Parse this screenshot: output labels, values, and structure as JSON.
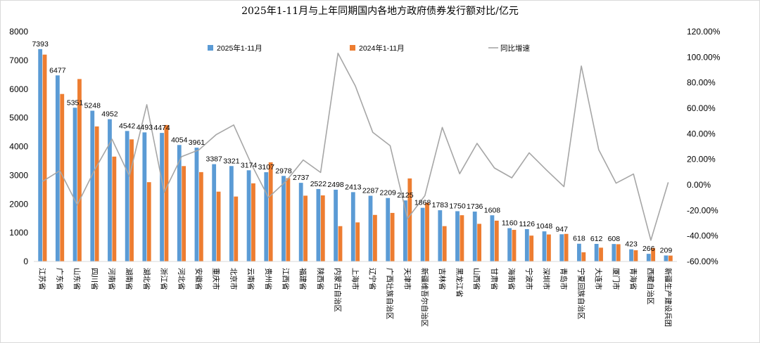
{
  "chart_data": {
    "type": "bar",
    "title": "2025年1-11月与上年同期国内各地方政府债券发行额对比/亿元",
    "legend_position": "top",
    "grid": false,
    "categories": [
      "江苏省",
      "广东省",
      "山东省",
      "四川省",
      "河南省",
      "湖南省",
      "湖北省",
      "浙江省",
      "河北省",
      "安徽省",
      "重庆市",
      "北京市",
      "云南省",
      "贵州省",
      "江西省",
      "福建省",
      "陕西省",
      "内蒙古自治区",
      "上海市",
      "辽宁省",
      "广西壮族自治区",
      "天津市",
      "新疆维吾尔自治区",
      "吉林省",
      "黑龙江省",
      "山西省",
      "甘肃省",
      "海南省",
      "宁波市",
      "深圳市",
      "青岛市",
      "宁夏回族自治区",
      "大连市",
      "厦门市",
      "青海省",
      "西藏自治区",
      "新疆生产建设兵团"
    ],
    "y_left": {
      "min": 0,
      "max": 8000,
      "step": 1000
    },
    "y_right": {
      "min": -60,
      "max": 120,
      "step": 20,
      "unit": "%"
    },
    "series": [
      {
        "name": "2025年1-11月",
        "color": "#5b9bd5",
        "axis": "left",
        "values": [
          7393,
          6477,
          5351,
          5248,
          4952,
          4542,
          4493,
          4474,
          4054,
          3961,
          3387,
          3321,
          3174,
          3107,
          2978,
          2737,
          2522,
          2498,
          2413,
          2287,
          2209,
          2125,
          1868,
          1783,
          1750,
          1736,
          1608,
          1160,
          1126,
          1048,
          947,
          618,
          612,
          608,
          423,
          266,
          209
        ]
      },
      {
        "name": "2024年1-11月",
        "color": "#ed7d31",
        "axis": "left",
        "values": [
          7200,
          5830,
          6350,
          4700,
          3650,
          4250,
          2760,
          4750,
          3320,
          3110,
          2430,
          2260,
          2720,
          3450,
          2900,
          2290,
          2300,
          1230,
          1360,
          1620,
          1690,
          2890,
          2040,
          1230,
          1610,
          1310,
          1420,
          1100,
          900,
          940,
          960,
          320,
          480,
          600,
          390,
          470,
          205
        ]
      },
      {
        "name": "同比增速",
        "color": "#a6a6a6",
        "axis": "right",
        "values": [
          2.7,
          11.1,
          -15.7,
          11.7,
          35.7,
          6.9,
          62.8,
          -5.8,
          22.1,
          27.4,
          39.4,
          46.9,
          16.7,
          -9.9,
          2.7,
          19.5,
          9.7,
          103.1,
          77.4,
          41.2,
          30.7,
          -26.5,
          -8.4,
          45.0,
          8.7,
          32.5,
          13.2,
          5.5,
          25.1,
          11.5,
          -1.4,
          93.1,
          27.5,
          1.3,
          8.5,
          -43.4,
          2.0
        ]
      }
    ],
    "data_labels": [
      7393,
      6477,
      5351,
      5248,
      4952,
      4542,
      4493,
      4474,
      4054,
      3961,
      3387,
      3321,
      3174,
      3107,
      2978,
      2737,
      2522,
      2498,
      2413,
      2287,
      2209,
      2125,
      1868,
      1783,
      1750,
      1736,
      1608,
      1160,
      1126,
      1048,
      947,
      618,
      612,
      608,
      423,
      266,
      209
    ]
  }
}
